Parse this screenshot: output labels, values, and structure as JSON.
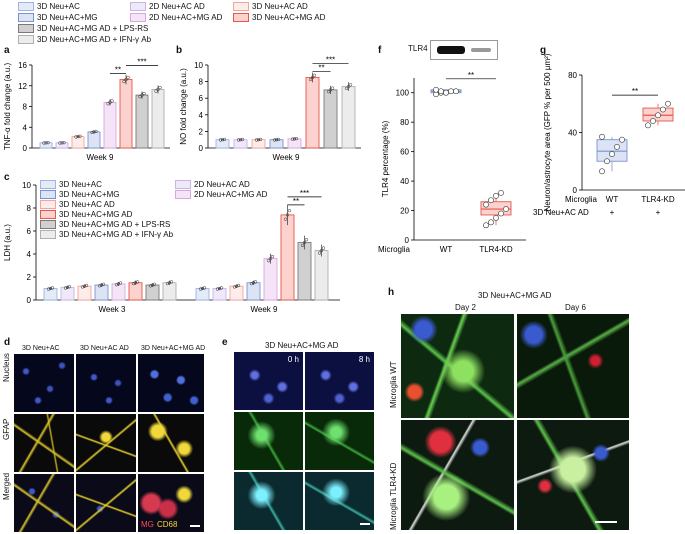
{
  "legend_top": {
    "items": [
      {
        "label": "3D Neu+AC",
        "key": "neu_ac"
      },
      {
        "label": "2D Neu+AC AD",
        "key": "2d_ad"
      },
      {
        "label": "3D Neu+AC AD",
        "key": "3d_ad"
      },
      {
        "label": "3D Neu+AC+MG",
        "key": "neu_ac_mg"
      },
      {
        "label": "2D Neu+AC+MG AD",
        "key": "2d_mg_ad"
      },
      {
        "label": "3D Neu+AC+MG AD",
        "key": "3d_mg_ad"
      },
      {
        "label": "3D Neu+AC+MG AD + LPS-RS",
        "key": "lps"
      },
      {
        "label": "3D Neu+AC+MG AD + IFN-γ Ab",
        "key": "ifn"
      }
    ]
  },
  "colors": {
    "neu_ac": "#9fb4e0",
    "neu_ac_mg": "#7d93cf",
    "2d_ad": "#c8b4e6",
    "2d_mg_ad": "#d6a8dc",
    "3d_ad": "#f2a39a",
    "3d_mg_ad": "#e8574a",
    "lps": "#7a7a7a",
    "ifn": "#b0b0b0"
  },
  "panels": {
    "a": "a",
    "b": "b",
    "c": "c",
    "d": "d",
    "e": "e",
    "f": "f",
    "g": "g",
    "h": "h"
  },
  "chart_data": [
    {
      "id": "a",
      "type": "bar",
      "ylabel": "TNF-α fold change (a.u.)",
      "xlabel": "Week 9",
      "ylim": [
        0,
        16
      ],
      "yticks": [
        0,
        4,
        8,
        12,
        16
      ],
      "categories": [
        "3D Neu+AC",
        "3D Neu+AC+MG",
        "2D Neu+AC AD",
        "2D Neu+AC+MG AD",
        "3D Neu+AC AD",
        "3D Neu+AC+MG AD",
        "3D Neu+AC+MG AD + LPS-RS",
        "3D Neu+AC+MG AD + IFN-γ Ab"
      ],
      "values": [
        1.0,
        1.0,
        2.2,
        3.1,
        8.8,
        13.2,
        10.2,
        11.3
      ],
      "significance": [
        "**",
        "***"
      ]
    },
    {
      "id": "b",
      "type": "bar",
      "ylabel": "NO fold change (a.u.)",
      "xlabel": "Week 9",
      "ylim": [
        0,
        10
      ],
      "yticks": [
        0,
        2,
        4,
        6,
        8,
        10
      ],
      "categories": [
        "3D Neu+AC",
        "3D Neu+AC+MG",
        "2D Neu+AC AD",
        "2D Neu+AC+MG AD",
        "3D Neu+AC AD",
        "3D Neu+AC+MG AD",
        "3D Neu+AC+MG AD + LPS-RS",
        "3D Neu+AC+MG AD + IFN-γ Ab"
      ],
      "values": [
        1.0,
        1.0,
        1.0,
        1.0,
        1.1,
        8.5,
        7.0,
        7.4
      ],
      "significance": [
        "**",
        "***"
      ]
    },
    {
      "id": "c",
      "type": "bar",
      "ylabel": "LDH (a.u.)",
      "xlabel": "",
      "ylim": [
        0,
        10
      ],
      "yticks": [
        0,
        2,
        4,
        6,
        8,
        10
      ],
      "groups": [
        "Week 3",
        "Week 9"
      ],
      "categories": [
        "3D Neu+AC",
        "3D Neu+AC+MG",
        "2D Neu+AC AD",
        "2D Neu+AC+MG AD",
        "3D Neu+AC AD",
        "3D Neu+AC+MG AD",
        "3D Neu+AC+MG AD + LPS-RS",
        "3D Neu+AC+MG AD + IFN-γ Ab"
      ],
      "series": [
        {
          "name": "Week 3",
          "values": [
            1.0,
            1.1,
            1.2,
            1.3,
            1.4,
            1.5,
            1.3,
            1.5
          ]
        },
        {
          "name": "Week 9",
          "values": [
            1.0,
            1.0,
            1.2,
            1.5,
            3.6,
            7.4,
            5.0,
            4.3
          ]
        }
      ],
      "significance": [
        "**",
        "***"
      ]
    },
    {
      "id": "f",
      "type": "box",
      "ylabel": "TLR4 percentage (%)",
      "ylim": [
        0,
        110
      ],
      "yticks": [
        0,
        20,
        40,
        60,
        80,
        100
      ],
      "categories": [
        "WT",
        "TLR4-KD"
      ],
      "row_label": "Microglia",
      "series": [
        {
          "name": "WT",
          "median": 101,
          "q1": 100,
          "q3": 102,
          "points": [
            99,
            100,
            100,
            101,
            101,
            102,
            101,
            100
          ]
        },
        {
          "name": "TLR4-KD",
          "median": 21,
          "q1": 17,
          "q3": 26,
          "points": [
            10,
            12,
            15,
            18,
            21,
            24,
            27,
            30,
            32
          ]
        }
      ],
      "significance": [
        "**"
      ],
      "blot_label": "TLR4"
    },
    {
      "id": "g",
      "type": "box",
      "ylabel": "Neuron/astrocyte area (GFP % per 500 µm²)",
      "ylim": [
        0,
        80
      ],
      "yticks": [
        0,
        40,
        80
      ],
      "categories": [
        "WT",
        "TLR4-KD"
      ],
      "row_labels": [
        "Microglia",
        "3D Neu+AC AD"
      ],
      "row2_values": [
        "+",
        "+"
      ],
      "series": [
        {
          "name": "WT",
          "median": 27,
          "q1": 20,
          "q3": 35,
          "points": [
            13,
            20,
            25,
            30,
            35,
            37
          ]
        },
        {
          "name": "TLR4-KD",
          "median": 52,
          "q1": 48,
          "q3": 57,
          "points": [
            45,
            48,
            52,
            56,
            60
          ]
        }
      ],
      "significance": [
        "**"
      ]
    }
  ],
  "d": {
    "cols": [
      "3D Neu+AC",
      "3D Neu+AC AD",
      "3D Neu+AC+MG AD"
    ],
    "rows": [
      "Nucleus",
      "GFAP",
      "Merged"
    ],
    "overlay_mg": "MG",
    "overlay_cd68": "CD68"
  },
  "e": {
    "title": "3D Neu+AC+MG AD",
    "times": [
      "0 h",
      "8 h"
    ]
  },
  "h": {
    "title": "3D Neu+AC+MG AD",
    "cols": [
      "Day 2",
      "Day 6"
    ],
    "rows": [
      "Microglia WT",
      "Microglia TLR4-KD"
    ]
  }
}
